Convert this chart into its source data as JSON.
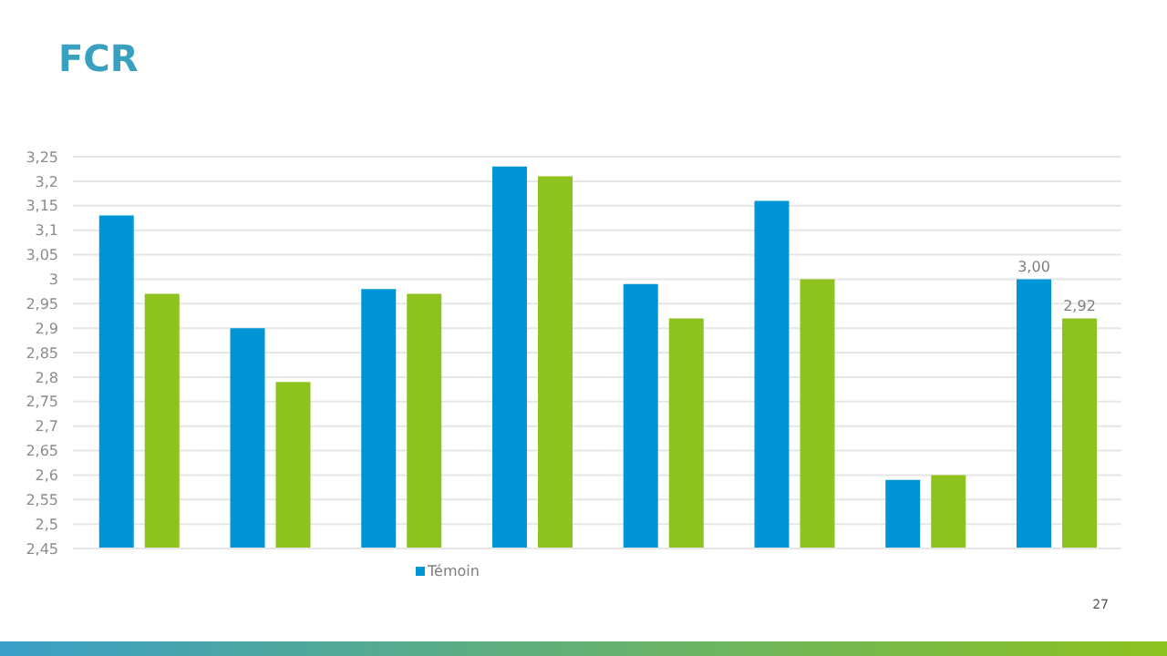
{
  "chart_data": {
    "type": "bar",
    "title": "FCR",
    "categories": [
      null,
      null,
      null,
      null,
      null,
      null,
      null,
      null
    ],
    "series": [
      {
        "name": "Témoin",
        "color": "#0096d6",
        "values": [
          3.13,
          2.9,
          2.98,
          3.23,
          2.99,
          3.16,
          2.59,
          3.0
        ],
        "value_labels": [
          null,
          null,
          null,
          null,
          null,
          null,
          null,
          "3,00"
        ]
      },
      {
        "color": "#8dc21f",
        "values": [
          2.97,
          2.79,
          2.97,
          3.21,
          2.92,
          3.0,
          2.6,
          2.92
        ],
        "value_labels": [
          null,
          null,
          null,
          null,
          null,
          null,
          null,
          "2,92"
        ]
      }
    ],
    "ylim": [
      2.45,
      3.25
    ],
    "yticks": [
      {
        "value": 2.45,
        "label": "2,45"
      },
      {
        "value": 2.5,
        "label": "2,5"
      },
      {
        "value": 2.55,
        "label": "2,55"
      },
      {
        "value": 2.6,
        "label": "2,6"
      },
      {
        "value": 2.65,
        "label": "2,65"
      },
      {
        "value": 2.7,
        "label": "2,7"
      },
      {
        "value": 2.75,
        "label": "2,75"
      },
      {
        "value": 2.8,
        "label": "2,8"
      },
      {
        "value": 2.85,
        "label": "2,85"
      },
      {
        "value": 2.9,
        "label": "2,9"
      },
      {
        "value": 2.95,
        "label": "2,95"
      },
      {
        "value": 3,
        "label": "3"
      },
      {
        "value": 3.05,
        "label": "3,05"
      },
      {
        "value": 3.1,
        "label": "3,1"
      },
      {
        "value": 3.15,
        "label": "3,15"
      },
      {
        "value": 3.2,
        "label": "3,2"
      },
      {
        "value": 3.25,
        "label": "3,25"
      }
    ],
    "grid": "y",
    "legend": "bottom",
    "annotations": [
      "27"
    ]
  }
}
